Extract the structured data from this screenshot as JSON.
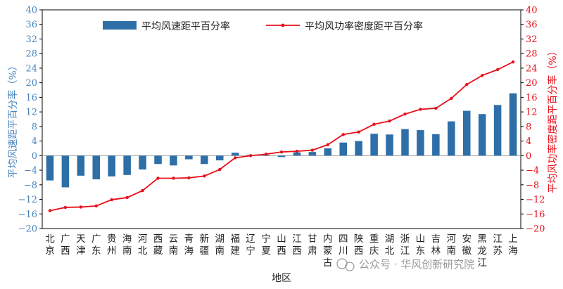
{
  "chart_data": {
    "type": "bar+line",
    "title": "",
    "xlabel": "地区",
    "ylabel_left": "平均风速距平百分率（%）",
    "ylabel_right": "平均风功率密度距平百分率（%）",
    "ylim_left": [
      -20,
      40
    ],
    "ylim_right": [
      -20,
      40
    ],
    "yticks": [
      -20,
      -16,
      -12,
      -8,
      -4,
      0,
      4,
      8,
      12,
      16,
      20,
      24,
      28,
      32,
      36,
      40
    ],
    "categories": [
      "北京",
      "广西",
      "天津",
      "广东",
      "贵州",
      "海南",
      "河北",
      "西藏",
      "云南",
      "青海",
      "新疆",
      "湖南",
      "福建",
      "辽宁",
      "宁夏",
      "山西",
      "江西",
      "甘肃",
      "内蒙古",
      "四川",
      "陕西",
      "重庆",
      "湖北",
      "浙江",
      "山东",
      "吉林",
      "河南",
      "安徽",
      "黑龙江",
      "江苏",
      "上海"
    ],
    "series": [
      {
        "name": "平均风速距平百分率",
        "type": "bar",
        "axis": "left",
        "color": "#2e6fa8",
        "values": [
          -6.8,
          -8.7,
          -5.5,
          -6.5,
          -5.7,
          -5.3,
          -3.8,
          -2.3,
          -2.7,
          -1.0,
          -2.3,
          -1.3,
          0.8,
          0.2,
          0.2,
          -0.4,
          0.9,
          1.0,
          2.0,
          3.6,
          4.0,
          6.0,
          5.8,
          7.3,
          7.0,
          5.9,
          9.4,
          12.3,
          11.4,
          13.9,
          17.1
        ]
      },
      {
        "name": "平均风功率密度距平百分率",
        "type": "line",
        "axis": "right",
        "color": "#e8101a",
        "values": [
          -15.1,
          -14.2,
          -14.1,
          -13.8,
          -12.1,
          -11.5,
          -9.6,
          -6.2,
          -6.2,
          -6.1,
          -5.6,
          -3.8,
          -0.6,
          0.0,
          0.4,
          1.0,
          1.2,
          1.5,
          3.0,
          5.8,
          6.5,
          8.6,
          9.5,
          11.4,
          12.7,
          13.0,
          15.7,
          19.5,
          22.0,
          23.6,
          25.7
        ]
      }
    ],
    "legend": [
      "平均风速距平百分率",
      "平均风功率密度距平百分率"
    ],
    "legend_position": "top-center",
    "watermark": "公众号 · 华风创新研究院",
    "colors": {
      "bar": "#2e6fa8",
      "line": "#e8101a",
      "left_axis": "#4a86be",
      "right_axis": "#e8101a"
    }
  }
}
